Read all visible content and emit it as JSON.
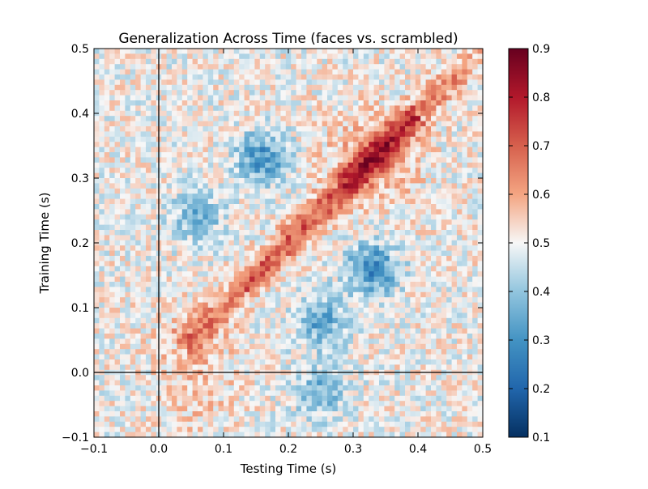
{
  "chart_data": {
    "type": "heatmap",
    "title": "Generalization Across Time (faces vs. scrambled)",
    "xlabel": "Testing Time (s)",
    "ylabel": "Training Time (s)",
    "xlim": [
      -0.1,
      0.5
    ],
    "ylim": [
      -0.1,
      0.5
    ],
    "x_ticks": [
      "−0.1",
      "0.0",
      "0.1",
      "0.2",
      "0.3",
      "0.4",
      "0.5"
    ],
    "y_ticks": [
      "−0.1",
      "0.0",
      "0.1",
      "0.2",
      "0.3",
      "0.4",
      "0.5"
    ],
    "colorbar": {
      "colormap": "RdBu_r",
      "vmin": 0.1,
      "vmax": 0.9,
      "ticks": [
        "0.1",
        "0.2",
        "0.3",
        "0.4",
        "0.5",
        "0.6",
        "0.7",
        "0.8",
        "0.9"
      ],
      "low_color": "#053061",
      "mid_color": "#f7f7f7",
      "high_color": "#67001f"
    },
    "reference_lines": {
      "x": 0.0,
      "y": 0.0
    },
    "approx_structure": {
      "baseline": 0.5,
      "diagonal_peak": 0.8,
      "diagonal_peak_time": 0.33,
      "early_peak_time": 0.17,
      "negative_patches": [
        {
          "test": 0.16,
          "train": 0.33,
          "value": 0.3
        },
        {
          "test": 0.06,
          "train": 0.24,
          "value": 0.37
        },
        {
          "test": 0.25,
          "train": 0.08,
          "value": 0.34
        },
        {
          "test": 0.25,
          "train": -0.03,
          "value": 0.36
        },
        {
          "test": 0.33,
          "train": 0.16,
          "value": 0.28
        }
      ]
    }
  }
}
